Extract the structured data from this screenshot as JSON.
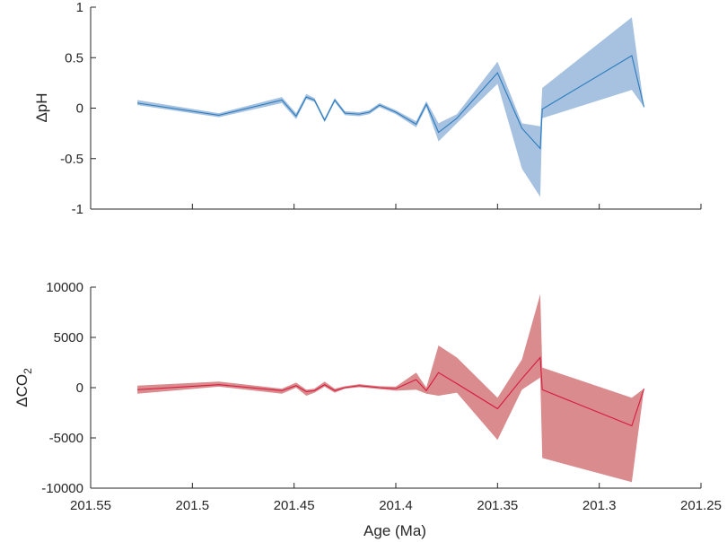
{
  "chart_data": [
    {
      "type": "area",
      "ylabel": "ΔpH",
      "ylabel_main": "ΔpH",
      "ylabel_sub": "",
      "xlim": [
        201.25,
        201.55
      ],
      "x_reversed": true,
      "ylim": [
        -1,
        1
      ],
      "yticks": [
        1,
        0.5,
        0,
        -0.5,
        -1
      ],
      "ytick_labels": [
        "1",
        "0.5",
        "0",
        "-0.5",
        "-1"
      ],
      "grid": false,
      "line_color": "#2b7bbd",
      "band_color": "#a6c2e0",
      "series": [
        {
          "x": [
            201.527,
            201.487,
            201.456,
            201.449,
            201.444,
            201.44,
            201.435,
            201.43,
            201.425,
            201.418,
            201.413,
            201.408,
            201.4,
            201.39,
            201.385,
            201.379,
            201.37,
            201.35,
            201.338,
            201.329,
            201.328,
            201.284,
            201.278
          ],
          "y": [
            0.05,
            -0.07,
            0.08,
            -0.08,
            0.11,
            0.08,
            -0.12,
            0.08,
            -0.05,
            -0.06,
            -0.04,
            0.03,
            -0.04,
            -0.16,
            0.04,
            -0.24,
            -0.1,
            0.35,
            -0.2,
            -0.4,
            -0.01,
            0.52,
            0.01
          ],
          "lower": [
            0.03,
            -0.09,
            0.05,
            -0.11,
            0.09,
            0.06,
            -0.14,
            0.06,
            -0.07,
            -0.08,
            -0.06,
            0.01,
            -0.06,
            -0.19,
            0.01,
            -0.33,
            -0.15,
            0.24,
            -0.6,
            -0.88,
            -0.1,
            0.18,
            0.01
          ],
          "upper": [
            0.08,
            -0.05,
            0.11,
            -0.05,
            0.14,
            0.1,
            -0.1,
            0.1,
            -0.03,
            -0.04,
            -0.02,
            0.05,
            -0.02,
            -0.13,
            0.07,
            -0.15,
            -0.06,
            0.46,
            -0.15,
            -0.18,
            0.2,
            0.9,
            0.01
          ]
        }
      ]
    },
    {
      "type": "area",
      "ylabel": "ΔCO2",
      "ylabel_main": "ΔCO",
      "ylabel_sub": "2",
      "xlim": [
        201.25,
        201.55
      ],
      "x_reversed": true,
      "ylim": [
        -10000,
        10000
      ],
      "yticks": [
        10000,
        5000,
        0,
        -5000,
        -10000
      ],
      "ytick_labels": [
        "10000",
        "5000",
        "0",
        "-5000",
        "-10000"
      ],
      "xticks": [
        201.55,
        201.5,
        201.45,
        201.4,
        201.35,
        201.3,
        201.25
      ],
      "xtick_labels": [
        "201.55",
        "201.5",
        "201.45",
        "201.4",
        "201.35",
        "201.3",
        "201.25"
      ],
      "xlabel": "Age (Ma)",
      "grid": false,
      "line_color": "#d7193c",
      "band_color": "#d98b8e",
      "series": [
        {
          "x": [
            201.527,
            201.487,
            201.456,
            201.449,
            201.444,
            201.44,
            201.435,
            201.43,
            201.425,
            201.418,
            201.413,
            201.408,
            201.4,
            201.39,
            201.385,
            201.379,
            201.37,
            201.35,
            201.338,
            201.329,
            201.328,
            201.284,
            201.278
          ],
          "y": [
            -200,
            300,
            -300,
            200,
            -400,
            -300,
            300,
            -300,
            0,
            200,
            100,
            0,
            -100,
            800,
            -300,
            1500,
            400,
            -2100,
            900,
            3000,
            -200,
            -3800,
            -100
          ],
          "lower": [
            -600,
            100,
            -600,
            0,
            -800,
            -500,
            100,
            -500,
            -100,
            50,
            -50,
            -150,
            -300,
            -200,
            -600,
            -800,
            -500,
            -5200,
            -200,
            1000,
            -7000,
            -9400,
            -100
          ],
          "upper": [
            200,
            600,
            -100,
            500,
            -200,
            -100,
            600,
            -100,
            150,
            350,
            250,
            150,
            100,
            1500,
            0,
            4200,
            3000,
            -1000,
            2800,
            9300,
            2000,
            -1000,
            -100
          ]
        }
      ]
    }
  ]
}
